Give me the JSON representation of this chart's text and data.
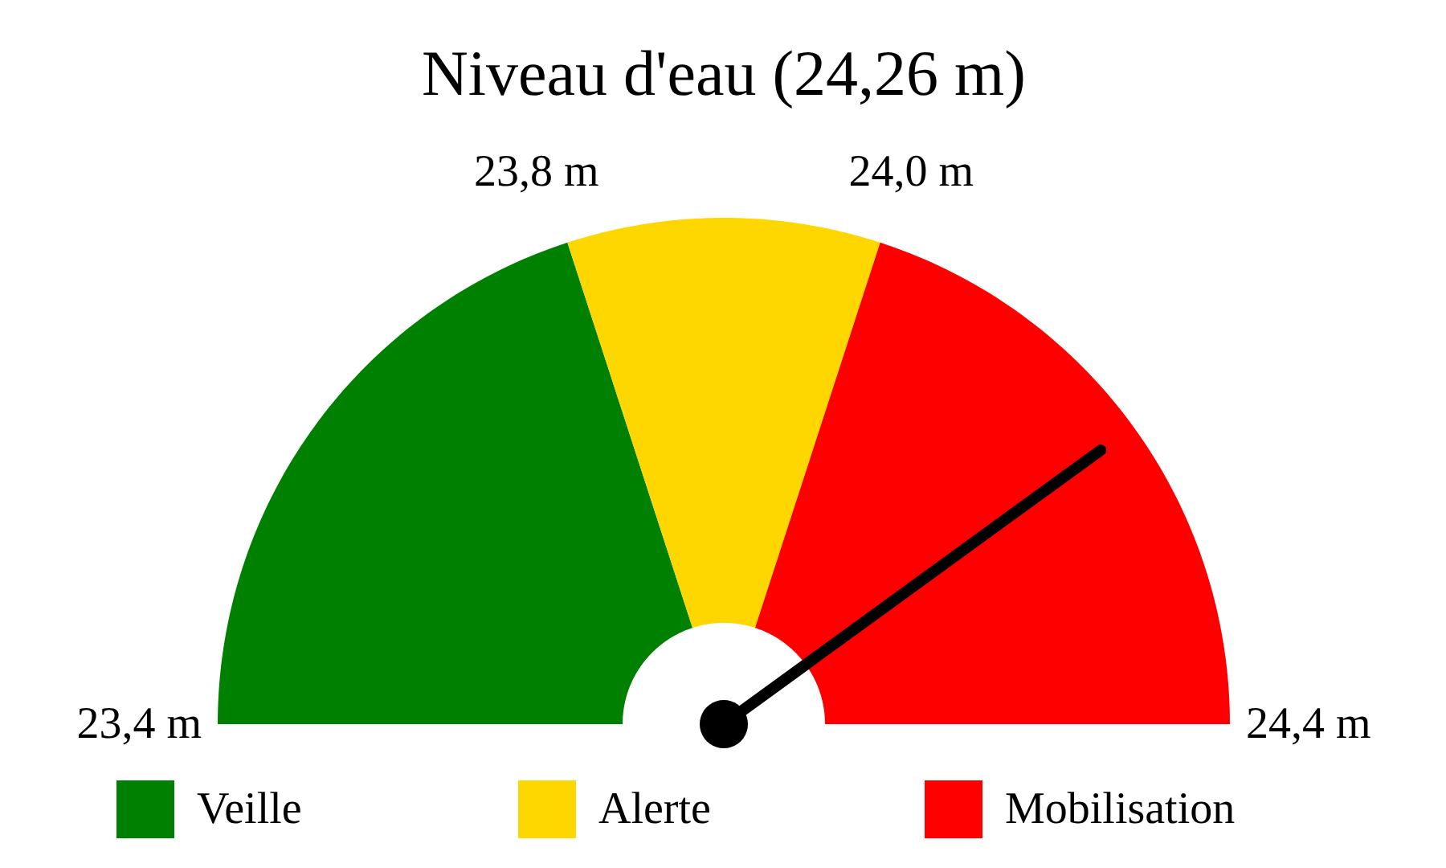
{
  "chart_data": {
    "type": "donut",
    "title": "Niveau d'eau (24,26 m)",
    "categories": [
      "Veille",
      "Alerte",
      "Mobilisation"
    ],
    "values": [
      40,
      20,
      40
    ],
    "colors": [
      "#008000",
      "#ffd700",
      "#ff0000"
    ],
    "annotations": [
      "23,4 m",
      "23,8 m",
      "24,0 m",
      "24,4 m"
    ],
    "needle": "Mobilisation",
    "legend": "bottom"
  }
}
